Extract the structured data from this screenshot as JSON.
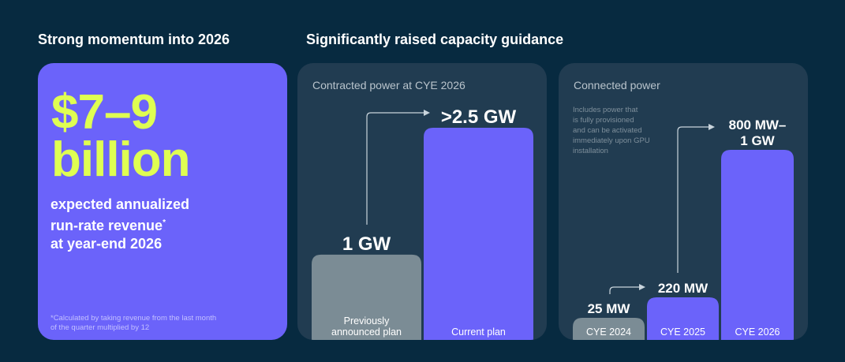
{
  "headings": {
    "left": "Strong momentum into 2026",
    "right": "Significantly raised capacity guidance"
  },
  "revenue_card": {
    "value_line1": "$7–9",
    "value_line2": "billion",
    "desc_line1": "expected annualized",
    "desc_line2": "run-rate revenue",
    "desc_sup": "*",
    "desc_line3": "at year-end 2026",
    "footnote_line1": "*Calculated by taking revenue from the last month",
    "footnote_line2": "of the quarter multiplied by 12"
  },
  "contracted_card": {
    "title": "Contracted power at CYE 2026"
  },
  "connected_card": {
    "title": "Connected power",
    "note_lines": [
      "Includes power that",
      "is fully provisioned",
      "and can be activated",
      "immediately upon GPU",
      "installation"
    ]
  },
  "colors": {
    "background": "#072a40",
    "card_dark": "#213c51",
    "purple": "#6b63fa",
    "accent_yellow": "#dffe52",
    "gray_bar": "#7b8c95",
    "muted_text": "#b9c4cc"
  },
  "chart_data": [
    {
      "type": "bar",
      "title": "Contracted power at CYE 2026",
      "categories": [
        "Previously announced plan",
        "Current plan"
      ],
      "category_lines": [
        [
          "Previously",
          "announced plan"
        ],
        [
          "Current plan"
        ]
      ],
      "values": [
        1,
        2.5
      ],
      "unit": "GW",
      "data_labels": [
        "1 GW",
        ">2.5 GW"
      ],
      "bar_colors": [
        "#7b8c95",
        "#6b63fa"
      ],
      "ylim": [
        0,
        2.5
      ]
    },
    {
      "type": "bar",
      "title": "Connected power",
      "categories": [
        "CYE 2024",
        "CYE 2025",
        "CYE 2026"
      ],
      "category_lines": [
        [
          "CYE 2024"
        ],
        [
          "CYE 2025"
        ],
        [
          "CYE 2026"
        ]
      ],
      "values": [
        25,
        220,
        900
      ],
      "unit": "MW",
      "data_labels": [
        "25 MW",
        "220 MW",
        "800 MW–\n1 GW"
      ],
      "bar_colors": [
        "#7b8c95",
        "#6b63fa",
        "#6b63fa"
      ],
      "ylim": [
        0,
        900
      ]
    }
  ]
}
